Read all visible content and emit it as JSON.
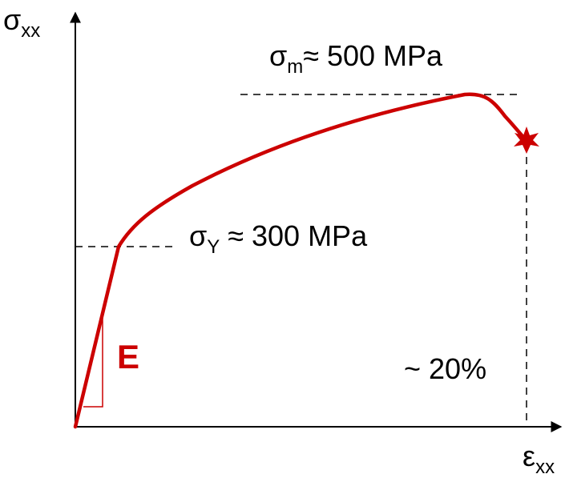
{
  "axes": {
    "y_label": "σ",
    "y_label_sub": "xx",
    "x_label": "ε",
    "x_label_sub": "xx"
  },
  "annotations": {
    "ultimate_symbol": "σ",
    "ultimate_sub": "m",
    "ultimate_value": "≈ 500 MPa",
    "yield_symbol": "σ",
    "yield_sub": "Y",
    "yield_value": " ≈ 300 MPa",
    "modulus_label": "E",
    "strain_label": "~ 20%"
  },
  "colors": {
    "curve": "#cc0000",
    "axes": "#000000",
    "guides": "#000000"
  },
  "markers": {
    "fracture_point": "star-icon"
  }
}
